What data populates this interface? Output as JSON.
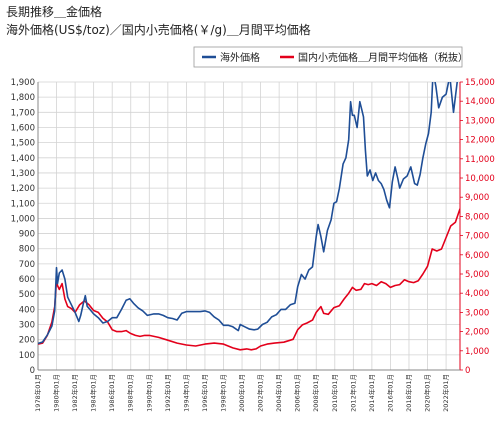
{
  "title": "長期推移＿金価格",
  "subtitle": "海外価格(US$/toz)／国内小売価格(￥/g)＿月間平均価格",
  "legend": {
    "placement": "top-right",
    "box": true
  },
  "colors": {
    "overseas": "#1f4e96",
    "domestic": "#e3001b",
    "grid": "#d3d3d3",
    "axis": "#888888"
  },
  "chart_data": {
    "type": "line",
    "title": "",
    "xlabel": "",
    "ylabel_left": "",
    "ylabel_right": "",
    "grid": true,
    "x_range": [
      1978,
      2023.5
    ],
    "y_left": {
      "range": [
        0,
        1900
      ],
      "ticks": [
        "0",
        "100",
        "200",
        "300",
        "400",
        "500",
        "600",
        "700",
        "800",
        "900",
        "1,000",
        "1,100",
        "1,200",
        "1,300",
        "1,400",
        "1,500",
        "1,600",
        "1,700",
        "1,800",
        "1,900"
      ]
    },
    "y_right": {
      "range": [
        0,
        15000
      ],
      "ticks": [
        "0",
        "1,000",
        "2,000",
        "3,000",
        "4,000",
        "5,000",
        "6,000",
        "7,000",
        "8,000",
        "9,000",
        "10,000",
        "11,000",
        "12,000",
        "13,000",
        "14,000",
        "15,000"
      ]
    },
    "x_tick_labels": [
      "1978年01月",
      "1980年01月",
      "1982年01月",
      "1984年01月",
      "1986年01月",
      "1988年01月",
      "1990年01月",
      "1992年01月",
      "1994年01月",
      "1996年01月",
      "1998年01月",
      "2000年01月",
      "2002年01月",
      "2004年01月",
      "2006年01月",
      "2008年01月",
      "2010年01月",
      "2012年01月",
      "2014年01月",
      "2016年01月",
      "2018年01月",
      "2020年01月",
      "2022年01月"
    ],
    "series": [
      {
        "name": "海外価格",
        "axis": "left",
        "color": "#1f4e96",
        "x": [
          1978.0,
          1978.5,
          1979.0,
          1979.5,
          1979.8,
          1980.0,
          1980.1,
          1980.3,
          1980.6,
          1980.9,
          1981.2,
          1981.6,
          1982.0,
          1982.4,
          1982.6,
          1982.9,
          1983.1,
          1983.3,
          1983.6,
          1984.0,
          1984.5,
          1985.0,
          1985.5,
          1986.0,
          1986.5,
          1987.0,
          1987.5,
          1987.9,
          1988.3,
          1988.8,
          1989.3,
          1989.8,
          1990.5,
          1991.0,
          1991.5,
          1992.0,
          1992.5,
          1993.0,
          1993.5,
          1994.0,
          1994.5,
          1995.0,
          1995.5,
          1996.0,
          1996.5,
          1997.0,
          1997.5,
          1998.0,
          1998.5,
          1999.0,
          1999.6,
          1999.8,
          2000.3,
          2000.8,
          2001.3,
          2001.7,
          2002.2,
          2002.7,
          2003.2,
          2003.7,
          2004.2,
          2004.7,
          2005.2,
          2005.7,
          2006.0,
          2006.4,
          2006.8,
          2007.2,
          2007.6,
          2008.0,
          2008.2,
          2008.5,
          2008.8,
          2009.2,
          2009.6,
          2009.9,
          2010.2,
          2010.5,
          2010.9,
          2011.2,
          2011.5,
          2011.7,
          2011.9,
          2012.1,
          2012.4,
          2012.7,
          2012.9,
          2013.1,
          2013.3,
          2013.5,
          2013.8,
          2014.1,
          2014.4,
          2014.7,
          2015.0,
          2015.3,
          2015.6,
          2015.9,
          2016.2,
          2016.5,
          2016.8,
          2017.0,
          2017.4,
          2017.8,
          2018.2,
          2018.6,
          2018.9,
          2019.2,
          2019.5,
          2019.8,
          2020.1,
          2020.4,
          2020.6,
          2020.9,
          2021.2,
          2021.6,
          2022.0,
          2022.4,
          2022.8,
          2023.2,
          2023.5
        ],
        "values": [
          175,
          185,
          230,
          290,
          390,
          675,
          570,
          640,
          660,
          600,
          480,
          430,
          380,
          320,
          360,
          440,
          490,
          420,
          400,
          370,
          345,
          310,
          320,
          345,
          345,
          400,
          460,
          470,
          440,
          410,
          390,
          360,
          370,
          370,
          360,
          345,
          340,
          330,
          375,
          385,
          385,
          385,
          385,
          390,
          380,
          350,
          330,
          295,
          295,
          285,
          260,
          300,
          285,
          270,
          265,
          270,
          300,
          315,
          350,
          365,
          400,
          400,
          430,
          440,
          550,
          630,
          600,
          660,
          680,
          880,
          960,
          880,
          780,
          920,
          990,
          1100,
          1110,
          1200,
          1360,
          1400,
          1520,
          1770,
          1680,
          1680,
          1600,
          1770,
          1720,
          1670,
          1450,
          1280,
          1320,
          1250,
          1300,
          1250,
          1230,
          1190,
          1120,
          1070,
          1240,
          1340,
          1260,
          1200,
          1260,
          1280,
          1340,
          1230,
          1220,
          1290,
          1400,
          1490,
          1560,
          1700,
          1970,
          1870,
          1730,
          1800,
          1820,
          1940,
          1700,
          1900,
          1970
        ]
      },
      {
        "name": "国内小売価格＿月間平均価格（税抜）",
        "axis": "right",
        "color": "#e3001b",
        "x": [
          1978.0,
          1978.5,
          1979.0,
          1979.5,
          1979.8,
          1980.0,
          1980.1,
          1980.3,
          1980.6,
          1980.9,
          1981.2,
          1981.6,
          1982.0,
          1982.5,
          1983.0,
          1983.5,
          1984.0,
          1984.5,
          1985.0,
          1985.5,
          1986.0,
          1986.5,
          1987.0,
          1987.5,
          1988.0,
          1988.5,
          1989.0,
          1989.5,
          1990.0,
          1991.0,
          1992.0,
          1993.0,
          1994.0,
          1995.0,
          1996.0,
          1997.0,
          1998.0,
          1999.0,
          1999.8,
          2000.5,
          2001.0,
          2001.5,
          2002.0,
          2002.7,
          2003.5,
          2004.5,
          2005.5,
          2006.0,
          2006.5,
          2007.0,
          2007.6,
          2008.0,
          2008.5,
          2008.8,
          2009.3,
          2009.9,
          2010.5,
          2011.0,
          2011.5,
          2011.9,
          2012.3,
          2012.8,
          2013.2,
          2013.6,
          2014.0,
          2014.5,
          2015.0,
          2015.5,
          2016.0,
          2016.5,
          2017.0,
          2017.5,
          2018.0,
          2018.5,
          2019.0,
          2019.5,
          2020.0,
          2020.5,
          2021.0,
          2021.5,
          2022.0,
          2022.5,
          2023.0,
          2023.5
        ],
        "values": [
          1350,
          1400,
          1800,
          2500,
          3300,
          4700,
          4400,
          4200,
          4500,
          3700,
          3300,
          3200,
          3000,
          3400,
          3600,
          3400,
          3100,
          3000,
          2700,
          2500,
          2100,
          2000,
          2000,
          2050,
          1900,
          1800,
          1750,
          1800,
          1800,
          1700,
          1550,
          1400,
          1300,
          1250,
          1350,
          1400,
          1350,
          1150,
          1050,
          1100,
          1050,
          1100,
          1250,
          1350,
          1400,
          1450,
          1600,
          2100,
          2350,
          2450,
          2600,
          3000,
          3300,
          2950,
          2900,
          3250,
          3350,
          3700,
          4000,
          4300,
          4150,
          4200,
          4500,
          4450,
          4500,
          4400,
          4600,
          4500,
          4300,
          4400,
          4450,
          4700,
          4600,
          4550,
          4650,
          5000,
          5400,
          6300,
          6200,
          6300,
          6900,
          7500,
          7700,
          8400
        ]
      }
    ]
  }
}
